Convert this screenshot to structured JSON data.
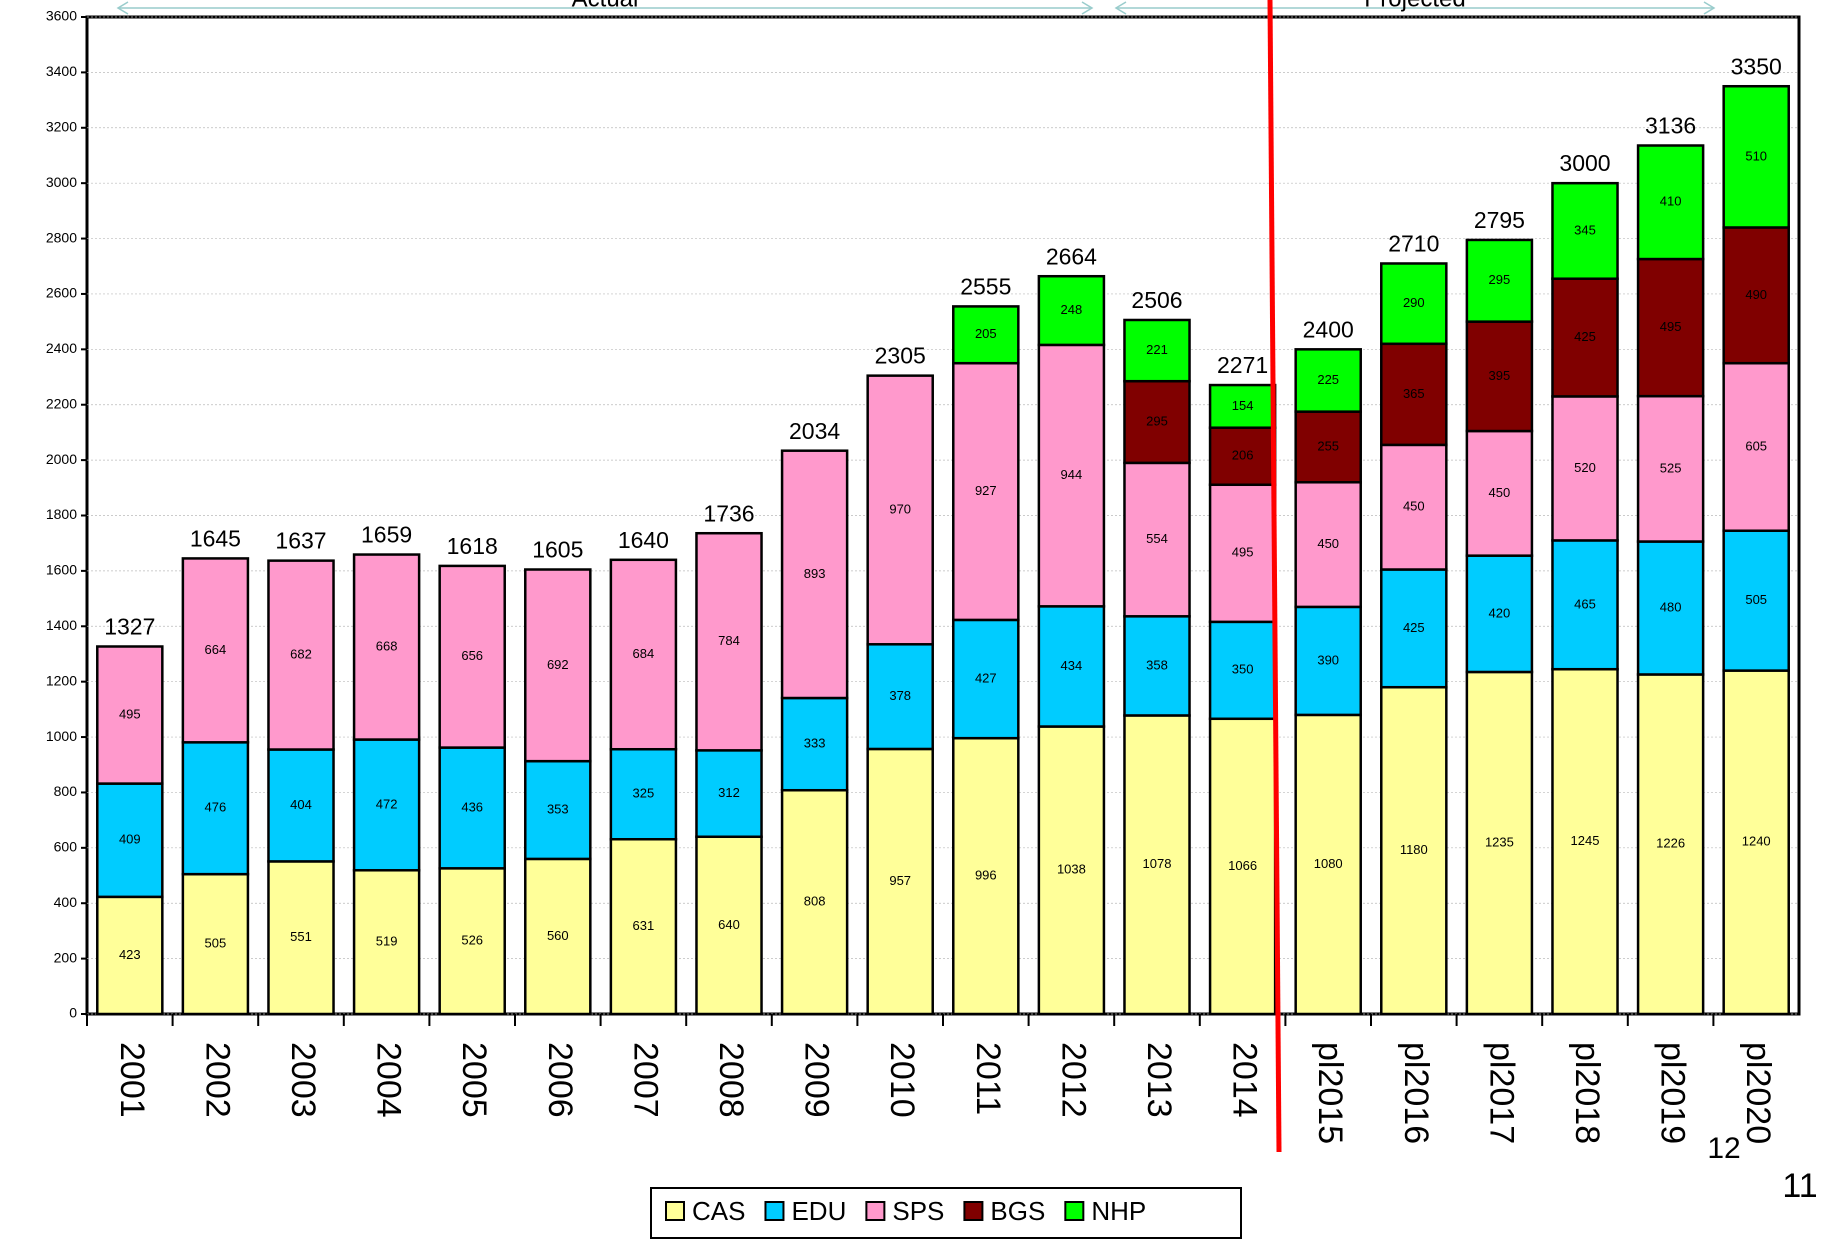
{
  "chart_data": {
    "type": "stacked_bar",
    "categories": [
      "2001",
      "2002",
      "2003",
      "2004",
      "2005",
      "2006",
      "2007",
      "2008",
      "2009",
      "2010",
      "2011",
      "2012",
      "2013",
      "2014",
      "pl2015",
      "pl2016",
      "pl2017",
      "pl2018",
      "pl2019",
      "pl2020"
    ],
    "series": [
      {
        "name": "CAS",
        "color": "#ffff99",
        "values": [
          423,
          505,
          551,
          519,
          526,
          560,
          631,
          640,
          808,
          957,
          996,
          1038,
          1078,
          1066,
          1080,
          1180,
          1235,
          1245,
          1226,
          1240
        ]
      },
      {
        "name": "EDU",
        "color": "#00ccff",
        "values": [
          409,
          476,
          404,
          472,
          436,
          353,
          325,
          312,
          333,
          378,
          427,
          434,
          358,
          350,
          390,
          425,
          420,
          465,
          480,
          505
        ]
      },
      {
        "name": "SPS",
        "color": "#ff99cc",
        "values": [
          495,
          664,
          682,
          668,
          656,
          692,
          684,
          784,
          893,
          970,
          927,
          944,
          554,
          495,
          450,
          450,
          450,
          520,
          525,
          605
        ]
      },
      {
        "name": "BGS",
        "color": "#800000",
        "values": [
          null,
          null,
          null,
          null,
          null,
          null,
          null,
          null,
          null,
          null,
          null,
          null,
          295,
          206,
          255,
          365,
          395,
          425,
          495,
          490
        ]
      },
      {
        "name": "NHP",
        "color": "#00ff00",
        "values": [
          null,
          null,
          null,
          null,
          null,
          null,
          null,
          null,
          null,
          null,
          205,
          248,
          221,
          154,
          225,
          290,
          295,
          345,
          410,
          510
        ]
      }
    ],
    "totals": [
      1327,
      1645,
      1637,
      1659,
      1618,
      1605,
      1640,
      1736,
      2034,
      2305,
      2555,
      2664,
      2506,
      2271,
      2400,
      2710,
      2795,
      3000,
      3136,
      3350
    ],
    "ylim": [
      0,
      3600
    ],
    "yticks": [
      0,
      200,
      400,
      600,
      800,
      1000,
      1200,
      1400,
      1600,
      1800,
      2000,
      2200,
      2400,
      2600,
      2800,
      3000,
      3200,
      3400,
      3600
    ],
    "annotations": [
      "Actual",
      "Projected"
    ],
    "page_numbers": [
      "12",
      "11"
    ]
  }
}
